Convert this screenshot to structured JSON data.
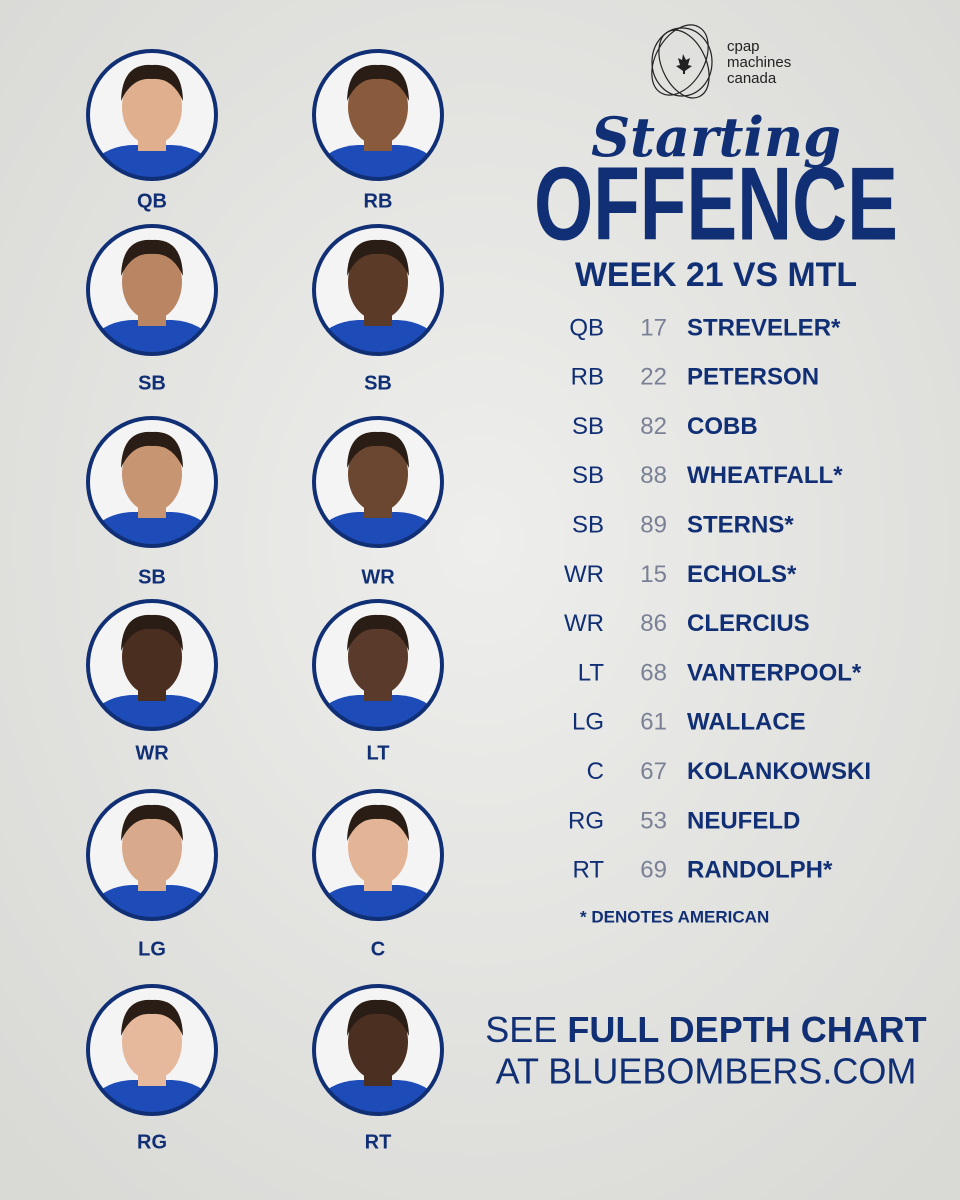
{
  "sponsor": {
    "lines": [
      "cpap",
      "machines",
      "canada"
    ]
  },
  "header": {
    "script_title": "Starting",
    "title": "OFFENCE",
    "subtitle": "WEEK 21 VS MTL"
  },
  "photos": {
    "labels": [
      "QB",
      "RB",
      "SB",
      "SB",
      "SB",
      "WR",
      "WR",
      "LT",
      "LG",
      "C",
      "RG",
      "RT"
    ]
  },
  "roster": {
    "rows": [
      [
        "QB",
        17,
        "STREVELER*"
      ],
      [
        "RB",
        22,
        "PETERSON"
      ],
      [
        "SB",
        82,
        "COBB"
      ],
      [
        "SB",
        88,
        "WHEATFALL*"
      ],
      [
        "SB",
        89,
        "STERNS*"
      ],
      [
        "WR",
        15,
        "ECHOLS*"
      ],
      [
        "WR",
        86,
        "CLERCIUS"
      ],
      [
        "LT",
        68,
        "VANTERPOOL*"
      ],
      [
        "LG",
        61,
        "WALLACE"
      ],
      [
        "C",
        67,
        "KOLANKOWSKI"
      ],
      [
        "RG",
        53,
        "NEUFELD"
      ],
      [
        "RT",
        69,
        "RANDOLPH*"
      ]
    ]
  },
  "footnote": "* DENOTES AMERICAN",
  "cta": {
    "prefix": "SEE",
    "emphasis": "FULL DEPTH CHART",
    "line2": "AT BLUEBOMBERS.COM"
  }
}
